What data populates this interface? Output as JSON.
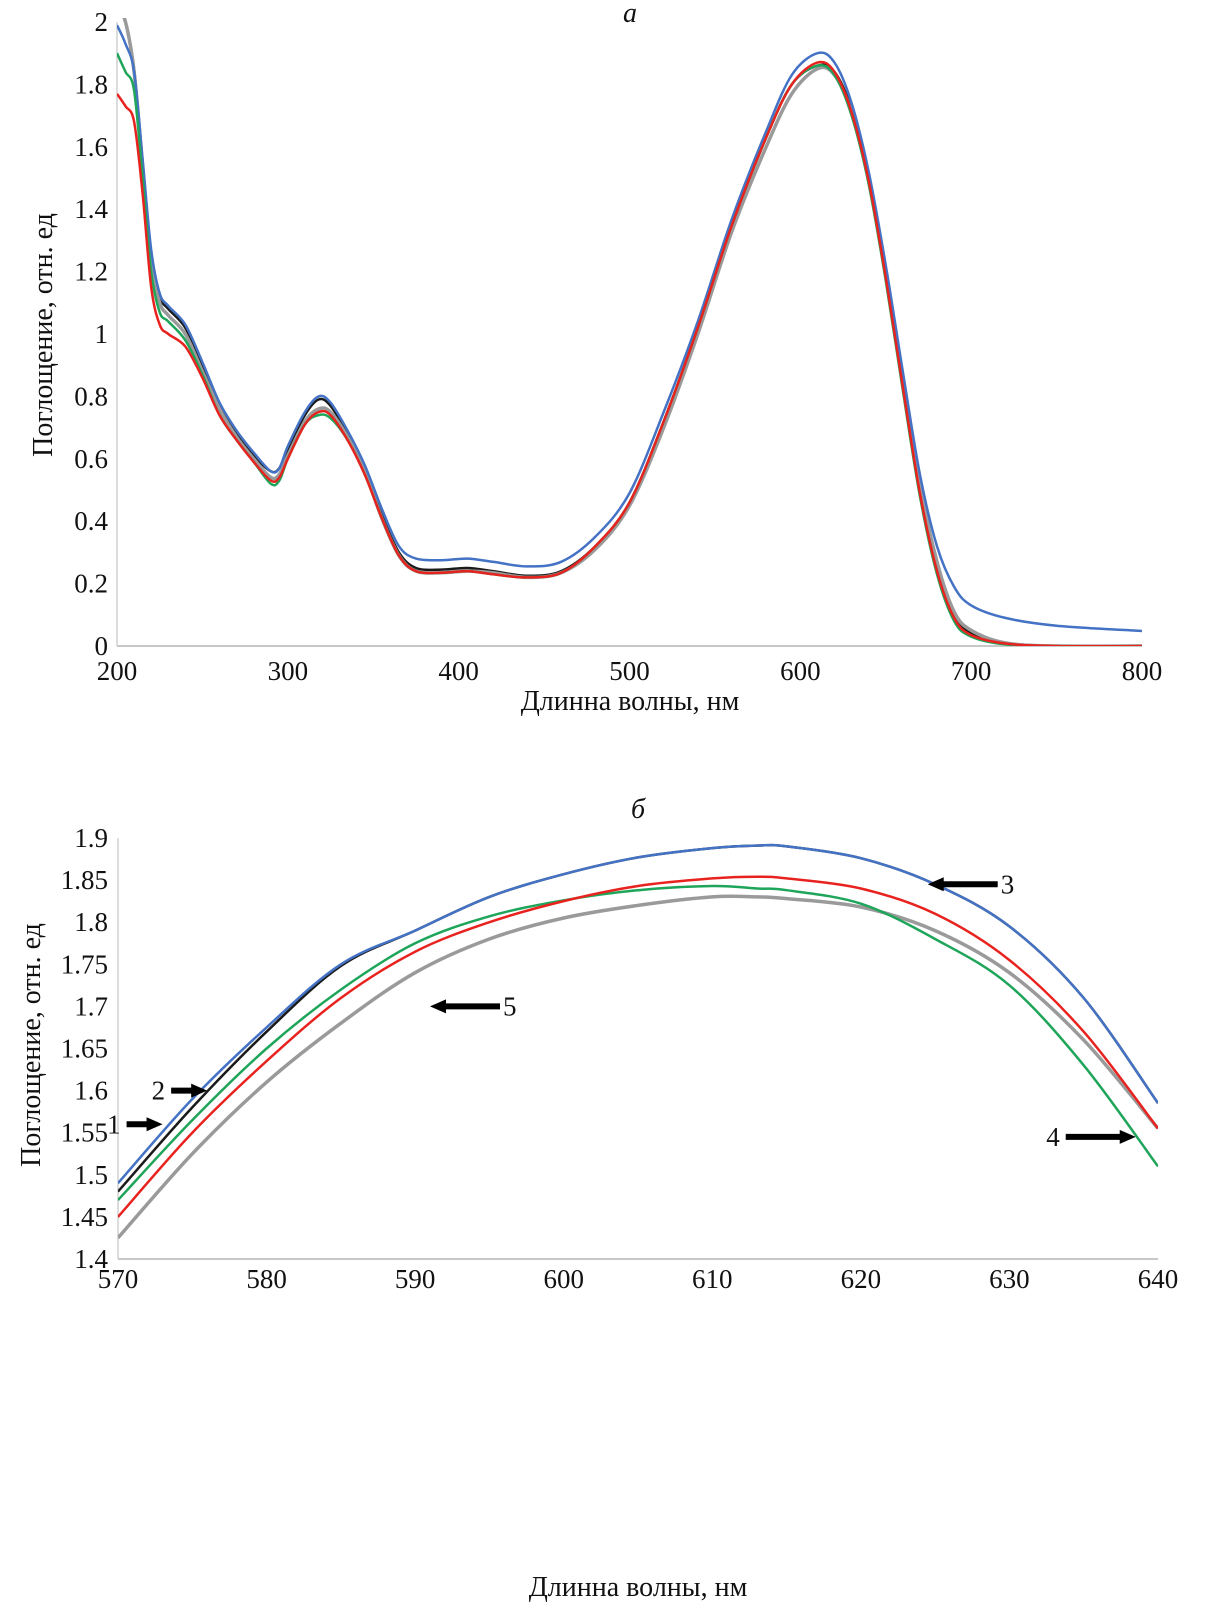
{
  "colors": {
    "s1": "#1a1a1a",
    "s2": "#4472c4",
    "s3": "#e8231f",
    "s4": "#1fa55a",
    "s5": "#9a9a9a"
  },
  "chart_data": [
    {
      "type": "line",
      "title": "а",
      "xlabel": "Длинна волны, нм",
      "ylabel": "Поглощение, отн. ед",
      "xlim": [
        200,
        800
      ],
      "ylim": [
        0,
        2
      ],
      "xticks": [
        200,
        300,
        400,
        500,
        600,
        700,
        800
      ],
      "yticks": [
        0,
        0.2,
        0.4,
        0.6,
        0.8,
        1,
        1.2,
        1.4,
        1.6,
        1.8,
        2
      ],
      "ytick_labels": [
        "0",
        "0.2",
        "0.4",
        "0.6",
        "0.8",
        "1",
        "1.2",
        "1.4",
        "1.6",
        "1.8",
        "2"
      ],
      "grid": false,
      "x": [
        200,
        205,
        210,
        215,
        220,
        225,
        230,
        240,
        250,
        260,
        270,
        280,
        290,
        295,
        300,
        310,
        318,
        325,
        335,
        345,
        355,
        365,
        375,
        390,
        405,
        420,
        440,
        460,
        480,
        500,
        520,
        540,
        560,
        580,
        595,
        610,
        620,
        630,
        640,
        650,
        660,
        670,
        680,
        690,
        700,
        720,
        750,
        800
      ],
      "series": [
        {
          "color": "s1",
          "values": [
            2.05,
            2.0,
            1.85,
            1.55,
            1.25,
            1.12,
            1.08,
            1.02,
            0.9,
            0.77,
            0.68,
            0.61,
            0.56,
            0.57,
            0.63,
            0.74,
            0.79,
            0.77,
            0.68,
            0.57,
            0.42,
            0.3,
            0.25,
            0.245,
            0.25,
            0.24,
            0.225,
            0.24,
            0.32,
            0.46,
            0.72,
            1.02,
            1.35,
            1.63,
            1.8,
            1.86,
            1.84,
            1.72,
            1.5,
            1.2,
            0.85,
            0.5,
            0.25,
            0.1,
            0.04,
            0.01,
            0.0,
            0.0
          ]
        },
        {
          "color": "s5",
          "values": [
            2.05,
            2.0,
            1.84,
            1.54,
            1.23,
            1.1,
            1.06,
            1.0,
            0.88,
            0.76,
            0.67,
            0.6,
            0.54,
            0.55,
            0.61,
            0.72,
            0.76,
            0.75,
            0.67,
            0.56,
            0.41,
            0.29,
            0.24,
            0.235,
            0.24,
            0.235,
            0.22,
            0.235,
            0.31,
            0.45,
            0.7,
            1.0,
            1.33,
            1.6,
            1.77,
            1.85,
            1.83,
            1.71,
            1.5,
            1.2,
            0.86,
            0.52,
            0.27,
            0.11,
            0.05,
            0.01,
            0.0,
            0.0
          ]
        },
        {
          "color": "s2",
          "values": [
            1.99,
            1.93,
            1.84,
            1.56,
            1.27,
            1.13,
            1.09,
            1.03,
            0.91,
            0.78,
            0.69,
            0.62,
            0.56,
            0.57,
            0.64,
            0.75,
            0.8,
            0.78,
            0.69,
            0.58,
            0.44,
            0.32,
            0.28,
            0.275,
            0.28,
            0.27,
            0.255,
            0.27,
            0.35,
            0.49,
            0.75,
            1.04,
            1.37,
            1.65,
            1.83,
            1.9,
            1.87,
            1.74,
            1.52,
            1.22,
            0.88,
            0.55,
            0.32,
            0.19,
            0.13,
            0.09,
            0.065,
            0.048
          ]
        },
        {
          "color": "s4",
          "values": [
            1.9,
            1.84,
            1.78,
            1.5,
            1.2,
            1.07,
            1.04,
            0.98,
            0.87,
            0.74,
            0.66,
            0.59,
            0.52,
            0.53,
            0.6,
            0.71,
            0.74,
            0.73,
            0.66,
            0.55,
            0.41,
            0.29,
            0.24,
            0.235,
            0.24,
            0.23,
            0.22,
            0.235,
            0.32,
            0.46,
            0.72,
            1.02,
            1.35,
            1.63,
            1.8,
            1.86,
            1.83,
            1.7,
            1.48,
            1.17,
            0.82,
            0.48,
            0.23,
            0.08,
            0.03,
            0.005,
            0.0,
            0.0
          ]
        },
        {
          "color": "s3",
          "values": [
            1.77,
            1.73,
            1.68,
            1.45,
            1.15,
            1.03,
            1.0,
            0.96,
            0.86,
            0.74,
            0.66,
            0.59,
            0.53,
            0.54,
            0.6,
            0.71,
            0.75,
            0.74,
            0.66,
            0.55,
            0.41,
            0.29,
            0.24,
            0.235,
            0.24,
            0.23,
            0.22,
            0.235,
            0.32,
            0.46,
            0.72,
            1.02,
            1.35,
            1.63,
            1.8,
            1.87,
            1.84,
            1.71,
            1.49,
            1.18,
            0.83,
            0.49,
            0.24,
            0.09,
            0.035,
            0.008,
            0.0,
            0.0
          ]
        }
      ]
    },
    {
      "type": "line",
      "title": "б",
      "xlabel": "Длинна волны, нм",
      "ylabel": "Поглощение, отн. ед",
      "xlim": [
        570,
        640
      ],
      "ylim": [
        1.4,
        1.9
      ],
      "xticks": [
        570,
        580,
        590,
        600,
        610,
        620,
        630,
        640
      ],
      "yticks": [
        1.4,
        1.45,
        1.5,
        1.55,
        1.6,
        1.65,
        1.7,
        1.75,
        1.8,
        1.85,
        1.9
      ],
      "ytick_labels": [
        "1.4",
        "1.45",
        "1.5",
        "1.55",
        "1.6",
        "1.65",
        "1.7",
        "1.75",
        "1.8",
        "1.85",
        "1.9"
      ],
      "grid": false,
      "x": [
        570,
        575,
        580,
        585,
        590,
        595,
        600,
        605,
        610,
        613,
        615,
        620,
        625,
        630,
        635,
        640
      ],
      "series": [
        {
          "color": "s5",
          "values": [
            1.425,
            1.525,
            1.61,
            1.68,
            1.74,
            1.78,
            1.805,
            1.82,
            1.83,
            1.83,
            1.828,
            1.818,
            1.79,
            1.74,
            1.66,
            1.555
          ]
        },
        {
          "color": "s4",
          "values": [
            1.47,
            1.565,
            1.65,
            1.72,
            1.775,
            1.807,
            1.826,
            1.838,
            1.843,
            1.84,
            1.838,
            1.822,
            1.78,
            1.725,
            1.63,
            1.51
          ]
        },
        {
          "color": "s3",
          "values": [
            1.45,
            1.55,
            1.635,
            1.71,
            1.765,
            1.8,
            1.825,
            1.843,
            1.852,
            1.854,
            1.852,
            1.84,
            1.81,
            1.755,
            1.67,
            1.555
          ]
        },
        {
          "color": "s1",
          "values": [
            1.48,
            1.58,
            1.67,
            1.748,
            1.79,
            1.83,
            1.857,
            1.877,
            1.888,
            1.891,
            1.89,
            1.876,
            1.845,
            1.795,
            1.71,
            1.585
          ]
        },
        {
          "color": "s2",
          "values": [
            1.49,
            1.59,
            1.675,
            1.75,
            1.79,
            1.83,
            1.857,
            1.877,
            1.888,
            1.891,
            1.89,
            1.876,
            1.845,
            1.795,
            1.71,
            1.585
          ]
        }
      ],
      "annotations": [
        {
          "label": "1",
          "x": 573,
          "y": 1.56,
          "direction": "right"
        },
        {
          "label": "2",
          "x": 576,
          "y": 1.6,
          "direction": "right"
        },
        {
          "label": "3",
          "x": 624.5,
          "y": 1.845,
          "direction": "left"
        },
        {
          "label": "4",
          "x": 638.5,
          "y": 1.545,
          "direction": "right"
        },
        {
          "label": "5",
          "x": 591,
          "y": 1.7,
          "direction": "left"
        }
      ]
    }
  ]
}
